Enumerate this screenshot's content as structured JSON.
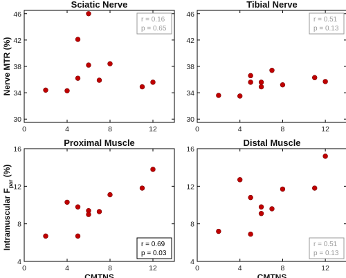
{
  "figure": {
    "ylabel_top": "Nerve MTR (%)",
    "ylabel_bottom_main": "Intramuscular F",
    "ylabel_bottom_sub": "par",
    "ylabel_bottom_tail": " (%)",
    "colors": {
      "marker": "#c00000",
      "marker_edge": "#7a0000",
      "axis": "#000000",
      "stat_sig": "#000000",
      "stat_ns": "#9a9a9a"
    }
  },
  "chart_data": [
    {
      "type": "scatter",
      "title": "Sciatic Nerve",
      "xlabel": "",
      "xlim": [
        0,
        14
      ],
      "ylim": [
        29.5,
        46.5
      ],
      "xticks": [
        0,
        4,
        8,
        12
      ],
      "yticks": [
        30,
        34,
        38,
        42,
        46
      ],
      "x": [
        2,
        4,
        5,
        5,
        6,
        6,
        7,
        8,
        11,
        12
      ],
      "y": [
        34.4,
        34.3,
        36.2,
        42.1,
        38.2,
        46.0,
        35.9,
        38.4,
        34.9,
        35.6
      ],
      "stats": {
        "r": "r = 0.16",
        "p": "p = 0.65",
        "significant": false
      }
    },
    {
      "type": "scatter",
      "title": "Tibial Nerve",
      "xlabel": "",
      "xlim": [
        0,
        14
      ],
      "ylim": [
        29.5,
        46.5
      ],
      "xticks": [
        0,
        4,
        8,
        12
      ],
      "yticks": [
        30,
        34,
        38,
        42,
        46
      ],
      "x": [
        2,
        4,
        5,
        5,
        6,
        6,
        7,
        8,
        11,
        12
      ],
      "y": [
        33.6,
        33.5,
        36.6,
        35.6,
        35.6,
        34.9,
        37.4,
        35.2,
        36.3,
        35.7
      ],
      "stats": {
        "r": "r = 0.51",
        "p": "p = 0.13",
        "significant": false
      }
    },
    {
      "type": "scatter",
      "title": "Proximal Muscle",
      "xlabel": "CMTNS",
      "xlim": [
        0,
        14
      ],
      "ylim": [
        4,
        16
      ],
      "xticks": [
        0,
        4,
        8,
        12
      ],
      "yticks": [
        4,
        8,
        12,
        16
      ],
      "x": [
        2,
        4,
        5,
        5,
        6,
        6,
        7,
        8,
        11,
        12
      ],
      "y": [
        6.7,
        10.3,
        6.7,
        9.8,
        9.4,
        9.0,
        9.3,
        11.1,
        11.8,
        13.8
      ],
      "stats": {
        "r": "r = 0.69",
        "p": "p = 0.03",
        "significant": true
      }
    },
    {
      "type": "scatter",
      "title": "Distal Muscle",
      "xlabel": "CMTNS",
      "xlim": [
        0,
        14
      ],
      "ylim": [
        4,
        16
      ],
      "xticks": [
        0,
        4,
        8,
        12
      ],
      "yticks": [
        4,
        8,
        12,
        16
      ],
      "x": [
        2,
        4,
        5,
        5,
        6,
        6,
        7,
        8,
        11,
        12
      ],
      "y": [
        7.2,
        12.7,
        10.8,
        6.9,
        9.8,
        9.1,
        9.6,
        11.7,
        11.8,
        15.2
      ],
      "stats": {
        "r": "r = 0.51",
        "p": "p = 0.13",
        "significant": false
      }
    }
  ]
}
